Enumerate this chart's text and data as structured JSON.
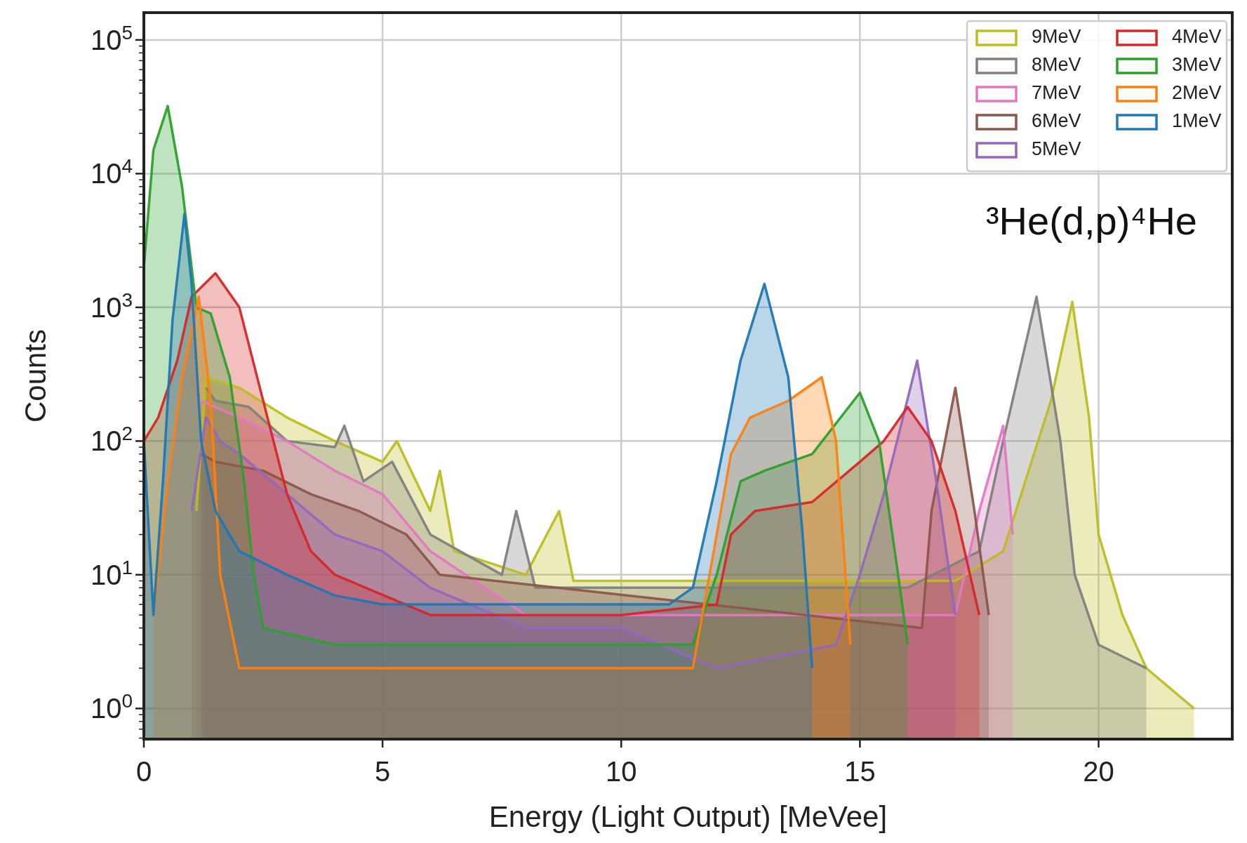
{
  "chart_data": {
    "type": "area",
    "xlabel": "Energy (Light Output) [MeVee]",
    "ylabel": "Counts",
    "log": "y",
    "grid": true,
    "legend": "top right",
    "xlim": [
      0,
      22.8
    ],
    "ylim": [
      0.59,
      160000
    ],
    "xticks": [
      0,
      5,
      10,
      15,
      20
    ],
    "yticks": [
      {
        "value": 1,
        "label": "10$^{0}$"
      },
      {
        "value": 10,
        "label": "10$^{1}$"
      },
      {
        "value": 100,
        "label": "10$^{2}$"
      },
      {
        "value": 1000,
        "label": "10$^{3}$"
      },
      {
        "value": 10000,
        "label": "10$^{4}$"
      },
      {
        "value": 100000,
        "label": "10$^{5}$"
      },
      {
        "value": 0.6,
        "label": null
      },
      {
        "value": 0.7,
        "label": null
      },
      {
        "value": 0.8,
        "label": null
      },
      {
        "value": 0.9,
        "label": null
      },
      {
        "value": 2,
        "label": null
      },
      {
        "value": 3,
        "label": null
      },
      {
        "value": 4,
        "label": null
      },
      {
        "value": 5,
        "label": null
      },
      {
        "value": 6,
        "label": null
      },
      {
        "value": 7,
        "label": null
      },
      {
        "value": 8,
        "label": null
      },
      {
        "value": 9,
        "label": null
      },
      {
        "value": 20,
        "label": null
      },
      {
        "value": 30,
        "label": null
      },
      {
        "value": 40,
        "label": null
      },
      {
        "value": 50,
        "label": null
      },
      {
        "value": 60,
        "label": null
      },
      {
        "value": 70,
        "label": null
      },
      {
        "value": 80,
        "label": null
      },
      {
        "value": 90,
        "label": null
      },
      {
        "value": 200,
        "label": null
      },
      {
        "value": 300,
        "label": null
      },
      {
        "value": 400,
        "label": null
      },
      {
        "value": 500,
        "label": null
      },
      {
        "value": 600,
        "label": null
      },
      {
        "value": 700,
        "label": null
      },
      {
        "value": 800,
        "label": null
      },
      {
        "value": 900,
        "label": null
      },
      {
        "value": 2000,
        "label": null
      },
      {
        "value": 3000,
        "label": null
      },
      {
        "value": 4000,
        "label": null
      },
      {
        "value": 5000,
        "label": null
      },
      {
        "value": 6000,
        "label": null
      },
      {
        "value": 7000,
        "label": null
      },
      {
        "value": 8000,
        "label": null
      },
      {
        "value": 9000,
        "label": null
      },
      {
        "value": 20000,
        "label": null
      },
      {
        "value": 30000,
        "label": null
      },
      {
        "value": 40000,
        "label": null
      },
      {
        "value": 50000,
        "label": null
      },
      {
        "value": 60000,
        "label": null
      },
      {
        "value": 70000,
        "label": null
      },
      {
        "value": 80000,
        "label": null
      },
      {
        "value": 90000,
        "label": null
      }
    ],
    "annotations": [
      "³He(d,p)⁴He"
    ],
    "series": [
      {
        "name": "9MeV",
        "color": "#bcbd22",
        "x": [
          1.1,
          1.3,
          2,
          3,
          4,
          5,
          5.3,
          6,
          6.2,
          6.5,
          8,
          8.7,
          9,
          10,
          12,
          14,
          17,
          18,
          19,
          19.45,
          19.8,
          20,
          20.5,
          21,
          22
        ],
        "values": [
          30,
          300,
          250,
          150,
          100,
          70,
          100,
          30,
          60,
          15,
          10,
          30,
          9,
          9,
          9,
          9,
          9,
          15,
          200,
          1100,
          150,
          20,
          5,
          2,
          1
        ]
      },
      {
        "name": "8MeV",
        "color": "#7f7f7f",
        "x": [
          1.3,
          1.5,
          2.2,
          3,
          4,
          4.2,
          4.6,
          5.2,
          6,
          7.5,
          7.8,
          8.2,
          10,
          12,
          14,
          16,
          17.5,
          18,
          18.7,
          19.2,
          19.5,
          20,
          21
        ],
        "values": [
          250,
          200,
          180,
          100,
          90,
          130,
          50,
          70,
          20,
          10,
          30,
          8,
          8,
          8,
          8,
          8,
          15,
          100,
          1200,
          100,
          10,
          3,
          2
        ]
      },
      {
        "name": "7MeV",
        "color": "#e377c2",
        "x": [
          1.2,
          2,
          3,
          4,
          5,
          6,
          8,
          17,
          17.5,
          18,
          18.2
        ],
        "values": [
          200,
          150,
          100,
          60,
          40,
          15,
          5,
          5,
          30,
          130,
          20
        ]
      },
      {
        "name": "6MeV",
        "color": "#8c564b",
        "x": [
          1.2,
          1.5,
          2.5,
          3.5,
          4.5,
          5.5,
          6.2,
          16.3,
          16.5,
          17,
          17.4,
          17.7
        ],
        "values": [
          80,
          70,
          60,
          40,
          30,
          20,
          10,
          4,
          30,
          250,
          30,
          5
        ]
      },
      {
        "name": "5MeV",
        "color": "#9467bd",
        "x": [
          1,
          1.3,
          1.6,
          2,
          3,
          4,
          5,
          6,
          8,
          10,
          12,
          14.5,
          15,
          15.5,
          16.2,
          16.6,
          17
        ],
        "values": [
          30,
          150,
          100,
          80,
          40,
          20,
          15,
          8,
          4,
          4,
          2,
          3,
          10,
          40,
          400,
          50,
          5
        ]
      },
      {
        "name": "4MeV",
        "color": "#d62728",
        "x": [
          0,
          0.3,
          0.7,
          1,
          1.5,
          2,
          2.5,
          3,
          3.5,
          4,
          6,
          8,
          10,
          12,
          12.3,
          12.8,
          14,
          15,
          15.5,
          16,
          16.5,
          17,
          17.5
        ],
        "values": [
          100,
          150,
          400,
          1200,
          1800,
          1000,
          200,
          40,
          15,
          10,
          5,
          5,
          5,
          6,
          20,
          30,
          35,
          70,
          100,
          180,
          100,
          30,
          5
        ]
      },
      {
        "name": "3MeV",
        "color": "#2ca02c",
        "x": [
          0,
          0.2,
          0.5,
          0.8,
          1.1,
          1.4,
          1.8,
          2.1,
          2.3,
          2.5,
          4,
          7,
          10,
          11.5,
          12,
          12.5,
          13,
          14,
          15,
          15.4,
          15.8,
          16
        ],
        "values": [
          2000,
          15000,
          32000,
          8000,
          1000,
          900,
          300,
          50,
          10,
          4,
          3,
          3,
          3,
          3,
          10,
          50,
          60,
          80,
          230,
          100,
          10,
          3
        ]
      },
      {
        "name": "2MeV",
        "color": "#ff7f0e",
        "x": [
          0.2,
          0.5,
          0.8,
          1.15,
          1.4,
          1.6,
          2,
          3,
          5,
          8,
          10,
          11.5,
          12,
          12.3,
          12.7,
          13.5,
          14.2,
          14.5,
          14.8
        ],
        "values": [
          5,
          50,
          300,
          1200,
          200,
          10,
          2,
          2,
          2,
          2,
          2,
          2,
          20,
          80,
          150,
          200,
          300,
          100,
          3
        ]
      },
      {
        "name": "1MeV",
        "color": "#1f77b4",
        "x": [
          0,
          0.2,
          0.4,
          0.6,
          0.85,
          1,
          1.2,
          1.5,
          2,
          3,
          4,
          5,
          6,
          7,
          8,
          9,
          10,
          11,
          11.5,
          12,
          12.5,
          13,
          13.5,
          13.8,
          14
        ],
        "values": [
          100,
          5,
          50,
          800,
          5000,
          1500,
          100,
          30,
          15,
          10,
          7,
          6,
          6,
          6,
          6,
          6,
          6,
          6,
          8,
          50,
          400,
          1500,
          300,
          20,
          2
        ]
      }
    ]
  }
}
